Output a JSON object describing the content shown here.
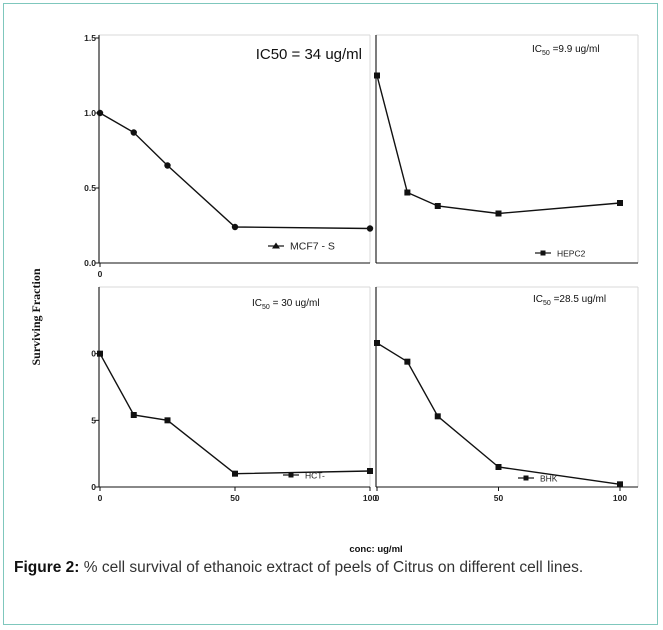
{
  "figure": {
    "ylabel": "Surviving Fraction",
    "xlabel": "conc: ug/ml",
    "caption_label": "Figure 2:",
    "caption_text": "% cell survival of ethanoic extract of peels of Citrus on different cell lines."
  },
  "chart_data": [
    {
      "type": "line",
      "annotation": "IC50 = 34 ug/ml",
      "legend": "MCF7 - S",
      "marker": "triangle",
      "ylim": [
        0,
        1.5
      ],
      "yticks": [
        "0.0",
        "0.5",
        "1.0",
        "1.5"
      ],
      "xlim": [
        0,
        100
      ],
      "xticks": [
        "0"
      ],
      "x": [
        0,
        12.5,
        25,
        50,
        100
      ],
      "y": [
        1.0,
        0.87,
        0.65,
        0.24,
        0.23
      ]
    },
    {
      "type": "line",
      "annotation_main": "IC",
      "annotation_sub": "50",
      "annotation_rest": " =9.9 ug/ml",
      "legend": "HEPC2",
      "marker": "square",
      "ylim": [
        0,
        1.5
      ],
      "yticks": [],
      "xlim": [
        0,
        100
      ],
      "xticks": [],
      "x": [
        0,
        12.5,
        25,
        50,
        100
      ],
      "y": [
        1.25,
        0.47,
        0.38,
        0.33,
        0.4
      ]
    },
    {
      "type": "line",
      "annotation_main": "IC",
      "annotation_sub": "50",
      "annotation_rest": " = 30 ug/ml",
      "legend": "HCT-",
      "marker": "square",
      "ylim": [
        0,
        1.5
      ],
      "yticks": [
        "0",
        "5",
        "0"
      ],
      "ytick_values": [
        0,
        0.5,
        1.0
      ],
      "xlim": [
        0,
        100
      ],
      "xticks": [
        "0",
        "50",
        "100"
      ],
      "x": [
        0,
        12.5,
        25,
        50,
        100
      ],
      "y": [
        1.0,
        0.54,
        0.5,
        0.1,
        0.12
      ]
    },
    {
      "type": "line",
      "annotation_main": "IC",
      "annotation_sub": "50",
      "annotation_rest": " =28.5 ug/ml",
      "legend": "BHK",
      "marker": "square",
      "ylim": [
        0,
        1.5
      ],
      "yticks": [],
      "xlim": [
        0,
        100
      ],
      "xticks": [
        "0",
        "50",
        "100"
      ],
      "x": [
        0,
        12.5,
        25,
        50,
        100
      ],
      "y": [
        1.08,
        0.94,
        0.53,
        0.15,
        0.02
      ]
    }
  ]
}
